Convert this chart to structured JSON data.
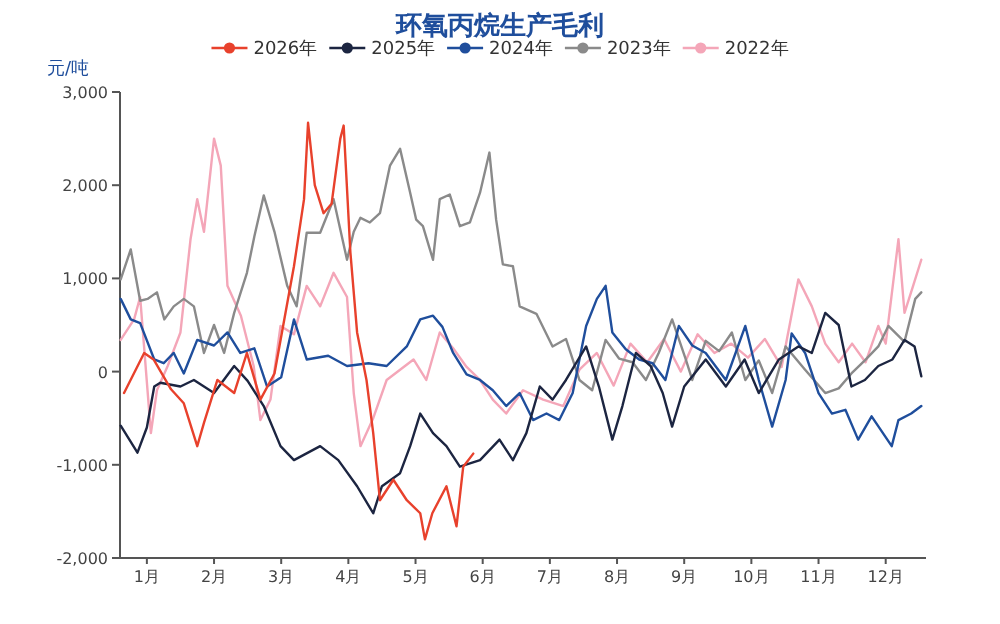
{
  "chart_data": {
    "type": "line",
    "title": "环氧丙烷生产毛利",
    "ylabel": "元/吨",
    "legend": "top",
    "xlim": [
      0.6,
      12.6
    ],
    "ylim": [
      -2000,
      3000
    ],
    "xticks": [
      {
        "value": 1,
        "label": "1月"
      },
      {
        "value": 2,
        "label": "2月"
      },
      {
        "value": 3,
        "label": "3月"
      },
      {
        "value": 4,
        "label": "4月"
      },
      {
        "value": 5,
        "label": "5月"
      },
      {
        "value": 6,
        "label": "6月"
      },
      {
        "value": 7,
        "label": "7月"
      },
      {
        "value": 8,
        "label": "8月"
      },
      {
        "value": 9,
        "label": "9月"
      },
      {
        "value": 10,
        "label": "10月"
      },
      {
        "value": 11,
        "label": "11月"
      },
      {
        "value": 12,
        "label": "12月"
      }
    ],
    "yticks": [
      {
        "value": 3000,
        "label": "3,000"
      },
      {
        "value": 2000,
        "label": "2,000"
      },
      {
        "value": 1000,
        "label": "1,000"
      },
      0,
      {
        "value": -1000,
        "label": "-1,000"
      },
      {
        "value": -2000,
        "label": "-2,000"
      }
    ],
    "series": [
      {
        "name": "2026年",
        "color": "#e8412c",
        "x": [
          0.66,
          0.96,
          1.1,
          1.36,
          1.55,
          1.75,
          1.85,
          2.05,
          2.3,
          2.49,
          2.69,
          2.9,
          3.19,
          3.34,
          3.4,
          3.5,
          3.63,
          3.75,
          3.88,
          3.93,
          4.03,
          4.13,
          4.27,
          4.37,
          4.47,
          4.67,
          4.87,
          5.07,
          5.14,
          5.25,
          5.46,
          5.61,
          5.71,
          5.86
        ],
        "values": [
          -230,
          200,
          130,
          -190,
          -340,
          -800,
          -550,
          -90,
          -230,
          200,
          -300,
          -20,
          1130,
          1850,
          2670,
          2000,
          1700,
          1800,
          2500,
          2640,
          1280,
          420,
          -90,
          -660,
          -1380,
          -1160,
          -1380,
          -1520,
          -1800,
          -1520,
          -1230,
          -1660,
          -1020,
          -880
        ]
      },
      {
        "name": "2025年",
        "color": "#1c2541",
        "x": [
          0.61,
          0.86,
          1.0,
          1.11,
          1.2,
          1.5,
          1.7,
          2.0,
          2.3,
          2.5,
          2.74,
          2.99,
          3.19,
          3.58,
          3.85,
          4.13,
          4.37,
          4.5,
          4.77,
          4.92,
          5.07,
          5.26,
          5.46,
          5.66,
          5.96,
          6.25,
          6.45,
          6.65,
          6.85,
          7.04,
          7.24,
          7.54,
          7.73,
          7.93,
          8.08,
          8.28,
          8.5,
          8.68,
          8.82,
          9.0,
          9.32,
          9.62,
          9.9,
          10.11,
          10.41,
          10.7,
          10.9,
          11.1,
          11.3,
          11.49,
          11.69,
          11.89,
          12.1,
          12.28,
          12.43,
          12.53
        ],
        "values": [
          -580,
          -870,
          -600,
          -160,
          -120,
          -160,
          -90,
          -230,
          60,
          -100,
          -370,
          -800,
          -950,
          -800,
          -950,
          -1230,
          -1520,
          -1230,
          -1090,
          -800,
          -450,
          -660,
          -800,
          -1020,
          -950,
          -730,
          -950,
          -660,
          -160,
          -300,
          -90,
          270,
          -160,
          -730,
          -370,
          200,
          60,
          -230,
          -590,
          -160,
          130,
          -160,
          130,
          -230,
          130,
          270,
          200,
          630,
          500,
          -160,
          -90,
          60,
          130,
          340,
          270,
          -50
        ]
      },
      {
        "name": "2024年",
        "color": "#1f4e9c",
        "x": [
          0.61,
          0.76,
          0.9,
          1.11,
          1.25,
          1.4,
          1.55,
          1.75,
          2.0,
          2.2,
          2.39,
          2.6,
          2.79,
          3.0,
          3.19,
          3.38,
          3.7,
          3.98,
          4.3,
          4.57,
          4.87,
          5.07,
          5.26,
          5.4,
          5.56,
          5.76,
          5.96,
          6.15,
          6.35,
          6.55,
          6.75,
          6.95,
          7.14,
          7.34,
          7.54,
          7.7,
          7.83,
          7.93,
          8.13,
          8.33,
          8.53,
          8.72,
          8.92,
          9.12,
          9.32,
          9.62,
          9.91,
          10.11,
          10.31,
          10.51,
          10.6,
          10.8,
          11.0,
          11.2,
          11.4,
          11.59,
          11.79,
          12.09,
          12.19,
          12.38,
          12.53
        ],
        "values": [
          780,
          560,
          520,
          130,
          90,
          200,
          -20,
          340,
          280,
          420,
          200,
          250,
          -160,
          -60,
          560,
          130,
          170,
          60,
          90,
          60,
          270,
          560,
          600,
          480,
          200,
          -30,
          -90,
          -200,
          -370,
          -230,
          -520,
          -450,
          -520,
          -230,
          490,
          780,
          920,
          420,
          240,
          130,
          90,
          -90,
          490,
          280,
          200,
          -90,
          490,
          -90,
          -590,
          -90,
          410,
          200,
          -230,
          -450,
          -410,
          -730,
          -480,
          -800,
          -520,
          -450,
          -370
        ]
      },
      {
        "name": "2023年",
        "color": "#8a8a8a",
        "x": [
          0.61,
          0.76,
          0.9,
          1.01,
          1.15,
          1.26,
          1.4,
          1.55,
          1.7,
          1.85,
          2.0,
          2.15,
          2.3,
          2.49,
          2.6,
          2.74,
          2.9,
          3.09,
          3.23,
          3.38,
          3.58,
          3.78,
          3.98,
          4.08,
          4.18,
          4.32,
          4.47,
          4.62,
          4.77,
          4.92,
          5.01,
          5.11,
          5.26,
          5.36,
          5.51,
          5.66,
          5.81,
          5.96,
          6.1,
          6.2,
          6.3,
          6.45,
          6.55,
          6.8,
          7.04,
          7.24,
          7.44,
          7.63,
          7.83,
          8.03,
          8.23,
          8.43,
          8.62,
          8.82,
          9.02,
          9.12,
          9.32,
          9.52,
          9.71,
          9.91,
          10.11,
          10.31,
          10.51,
          10.8,
          11.1,
          11.3,
          11.49,
          11.69,
          11.89,
          12.04,
          12.28,
          12.44,
          12.53
        ],
        "values": [
          990,
          1310,
          760,
          780,
          850,
          560,
          700,
          780,
          700,
          200,
          500,
          200,
          630,
          1060,
          1450,
          1890,
          1500,
          920,
          700,
          1490,
          1490,
          1850,
          1200,
          1500,
          1650,
          1600,
          1700,
          2210,
          2390,
          1920,
          1630,
          1560,
          1200,
          1850,
          1900,
          1560,
          1600,
          1920,
          2350,
          1630,
          1150,
          1130,
          700,
          620,
          270,
          350,
          -90,
          -200,
          340,
          140,
          100,
          -90,
          200,
          560,
          140,
          -90,
          330,
          220,
          420,
          -90,
          120,
          -230,
          270,
          20,
          -230,
          -180,
          -20,
          120,
          270,
          490,
          320,
          780,
          850
        ]
      },
      {
        "name": "2022年",
        "color": "#f4a6b8",
        "x": [
          0.61,
          0.81,
          0.9,
          1.06,
          1.15,
          1.31,
          1.5,
          1.65,
          1.75,
          1.85,
          2.0,
          2.1,
          2.2,
          2.4,
          2.59,
          2.69,
          2.84,
          2.99,
          3.19,
          3.38,
          3.58,
          3.78,
          3.98,
          4.08,
          4.18,
          4.37,
          4.57,
          4.77,
          4.97,
          5.16,
          5.36,
          5.56,
          5.76,
          5.96,
          6.15,
          6.35,
          6.6,
          6.9,
          7.2,
          7.44,
          7.7,
          7.95,
          8.2,
          8.45,
          8.7,
          8.95,
          9.2,
          9.45,
          9.7,
          9.95,
          10.2,
          10.45,
          10.7,
          10.9,
          11.1,
          11.3,
          11.5,
          11.7,
          11.89,
          12.0,
          12.19,
          12.28,
          12.4,
          12.53
        ],
        "values": [
          340,
          560,
          800,
          -660,
          -200,
          60,
          420,
          1420,
          1850,
          1500,
          2500,
          2210,
          920,
          600,
          60,
          -520,
          -300,
          490,
          400,
          920,
          700,
          1060,
          800,
          -230,
          -800,
          -500,
          -90,
          20,
          130,
          -90,
          420,
          250,
          50,
          -90,
          -300,
          -450,
          -200,
          -300,
          -370,
          20,
          200,
          -150,
          300,
          100,
          350,
          0,
          400,
          200,
          300,
          150,
          350,
          50,
          990,
          700,
          300,
          100,
          300,
          100,
          490,
          300,
          1420,
          630,
          900,
          1200
        ]
      }
    ]
  }
}
